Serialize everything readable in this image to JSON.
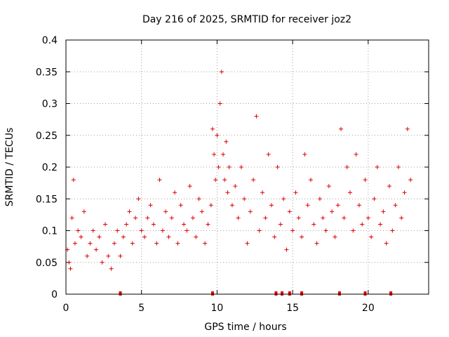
{
  "chart_data": {
    "type": "scatter",
    "title": "Day 216 of 2025, SRMTID for receiver joz2",
    "xlabel": "GPS time / hours",
    "ylabel": "SRMTID / TECUs",
    "xlim": [
      0,
      24
    ],
    "ylim": [
      0,
      0.4
    ],
    "xticks": [
      0,
      5,
      10,
      15,
      20
    ],
    "xtick_labels": [
      "0",
      "5",
      "10",
      "15",
      "20"
    ],
    "yticks": [
      0,
      0.05,
      0.1,
      0.15,
      0.2,
      0.25,
      0.3,
      0.35,
      0.4
    ],
    "ytick_labels": [
      "0",
      "0.05",
      "0.1",
      "0.15",
      "0.2",
      "0.25",
      "0.3",
      "0.35",
      "0.4"
    ],
    "grid": true,
    "marker": "plus",
    "color": "#e00000",
    "series": [
      {
        "name": "SRMTID",
        "x": [
          0.1,
          0.2,
          0.3,
          0.4,
          0.5,
          0.6,
          0.8,
          1.0,
          1.2,
          1.4,
          1.6,
          1.8,
          2.0,
          2.2,
          2.4,
          2.6,
          2.8,
          3.0,
          3.2,
          3.4,
          3.6,
          3.8,
          4.0,
          4.2,
          4.4,
          4.6,
          4.8,
          5.0,
          5.2,
          5.4,
          5.6,
          5.8,
          6.0,
          6.2,
          6.4,
          6.6,
          6.8,
          7.0,
          7.2,
          7.4,
          7.6,
          7.8,
          8.0,
          8.2,
          8.4,
          8.6,
          8.8,
          9.0,
          9.2,
          9.4,
          9.6,
          9.7,
          9.8,
          9.9,
          10.0,
          10.1,
          10.2,
          10.3,
          10.4,
          10.5,
          10.6,
          10.7,
          10.8,
          11.0,
          11.2,
          11.4,
          11.6,
          11.8,
          12.0,
          12.2,
          12.4,
          12.6,
          12.8,
          13.0,
          13.2,
          13.4,
          13.6,
          13.8,
          14.0,
          14.2,
          14.4,
          14.6,
          14.8,
          15.0,
          15.2,
          15.4,
          15.6,
          15.8,
          16.0,
          16.2,
          16.4,
          16.6,
          16.8,
          17.0,
          17.2,
          17.4,
          17.6,
          17.8,
          18.0,
          18.2,
          18.4,
          18.6,
          18.8,
          19.0,
          19.2,
          19.4,
          19.6,
          19.8,
          20.0,
          20.2,
          20.4,
          20.6,
          20.8,
          21.0,
          21.2,
          21.4,
          21.6,
          21.8,
          22.0,
          22.2,
          22.4,
          22.6,
          22.8
        ],
        "y": [
          0.07,
          0.05,
          0.04,
          0.12,
          0.18,
          0.08,
          0.1,
          0.09,
          0.13,
          0.06,
          0.08,
          0.1,
          0.07,
          0.09,
          0.05,
          0.11,
          0.06,
          0.04,
          0.08,
          0.1,
          0.06,
          0.09,
          0.11,
          0.13,
          0.08,
          0.12,
          0.15,
          0.1,
          0.09,
          0.12,
          0.14,
          0.11,
          0.08,
          0.18,
          0.1,
          0.13,
          0.09,
          0.12,
          0.16,
          0.08,
          0.14,
          0.11,
          0.1,
          0.17,
          0.12,
          0.09,
          0.15,
          0.13,
          0.08,
          0.11,
          0.14,
          0.26,
          0.22,
          0.18,
          0.25,
          0.2,
          0.3,
          0.35,
          0.22,
          0.18,
          0.24,
          0.16,
          0.2,
          0.14,
          0.17,
          0.12,
          0.2,
          0.15,
          0.08,
          0.13,
          0.18,
          0.28,
          0.1,
          0.16,
          0.12,
          0.22,
          0.14,
          0.09,
          0.2,
          0.11,
          0.15,
          0.07,
          0.13,
          0.1,
          0.16,
          0.12,
          0.09,
          0.22,
          0.14,
          0.18,
          0.11,
          0.08,
          0.15,
          0.12,
          0.1,
          0.17,
          0.13,
          0.09,
          0.14,
          0.26,
          0.12,
          0.2,
          0.16,
          0.1,
          0.22,
          0.14,
          0.11,
          0.18,
          0.12,
          0.09,
          0.15,
          0.2,
          0.11,
          0.13,
          0.08,
          0.17,
          0.1,
          0.14,
          0.2,
          0.12,
          0.16,
          0.26,
          0.18
        ]
      }
    ],
    "bottom_markers_x": [
      3.6,
      9.7,
      13.9,
      14.3,
      14.8,
      15.6,
      18.1,
      19.8,
      21.5
    ]
  }
}
